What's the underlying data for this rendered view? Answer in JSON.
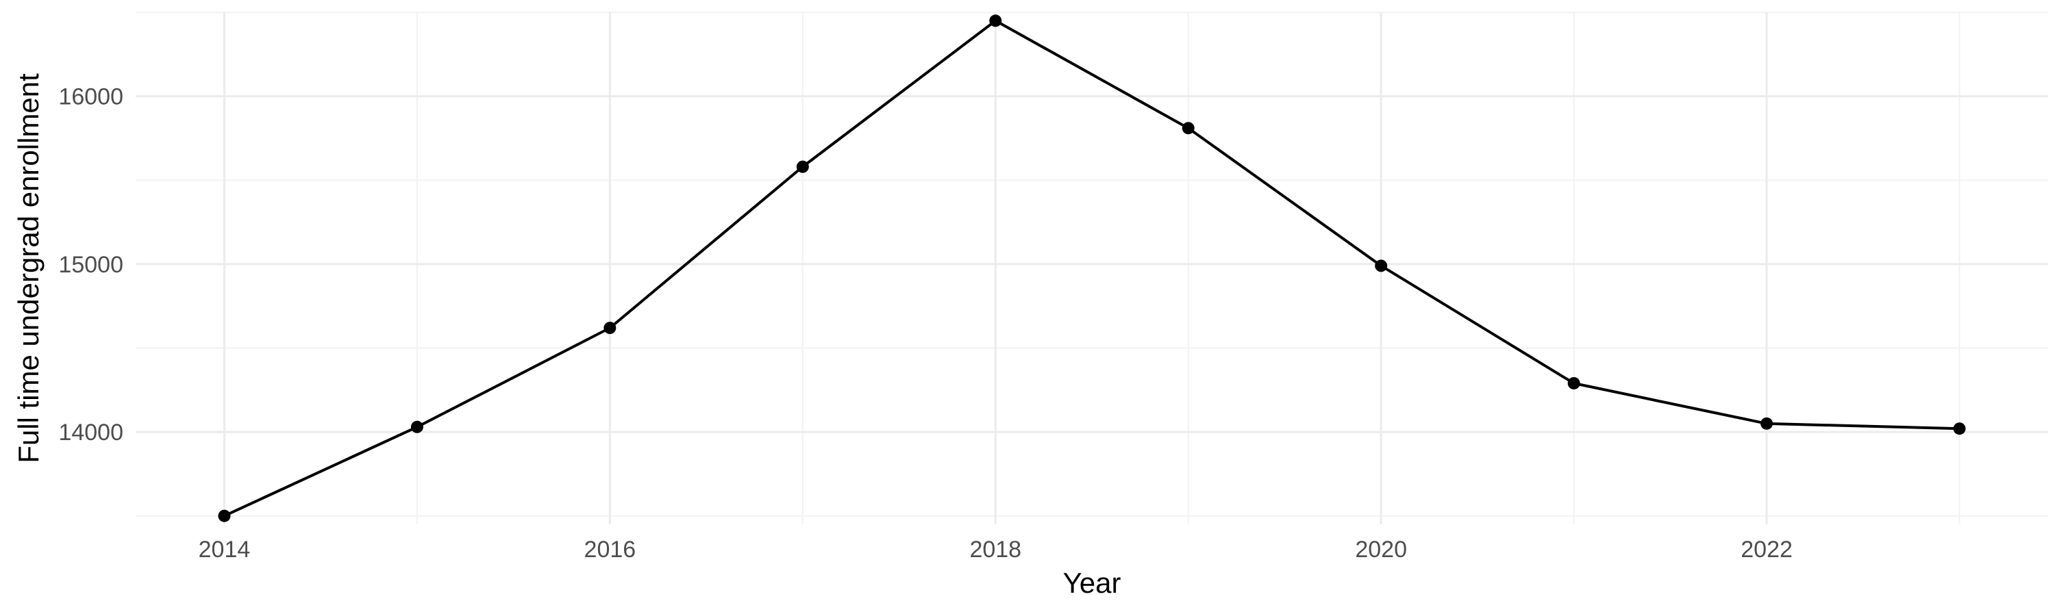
{
  "chart_data": {
    "type": "line",
    "title": "",
    "xlabel": "Year",
    "ylabel": "Full time undergrad enrollment",
    "x": [
      2014,
      2015,
      2016,
      2017,
      2018,
      2019,
      2020,
      2021,
      2022,
      2023
    ],
    "series": [
      {
        "values": [
          13500,
          14030,
          14620,
          15580,
          16450,
          15810,
          14990,
          14290,
          14050,
          14020
        ]
      }
    ],
    "x_ticks": [
      "2014",
      "2016",
      "2018",
      "2020",
      "2022"
    ],
    "y_ticks": [
      "14000",
      "15000",
      "16000"
    ],
    "xlim": [
      2013.54,
      2023.46
    ],
    "ylim": [
      13450,
      16500
    ],
    "grid": true,
    "line_color": "#000000",
    "marker": "circle"
  }
}
